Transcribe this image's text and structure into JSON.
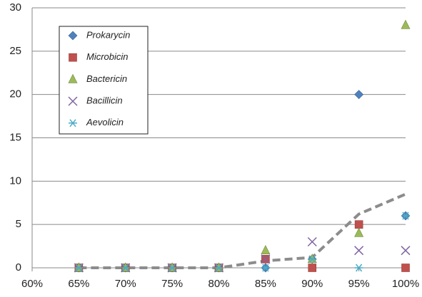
{
  "chart_data": {
    "type": "scatter",
    "x": [
      65,
      70,
      75,
      80,
      85,
      90,
      95,
      100
    ],
    "xlim": [
      60,
      100
    ],
    "xticks": [
      {
        "value": 60,
        "label": "60%"
      },
      {
        "value": 65,
        "label": "65%"
      },
      {
        "value": 70,
        "label": "70%"
      },
      {
        "value": 75,
        "label": "75%"
      },
      {
        "value": 80,
        "label": "80%"
      },
      {
        "value": 85,
        "label": "85%"
      },
      {
        "value": 90,
        "label": "90%"
      },
      {
        "value": 95,
        "label": "95%"
      },
      {
        "value": 100,
        "label": "100%"
      }
    ],
    "ylim": [
      0,
      30
    ],
    "yticks": [
      0,
      5,
      10,
      15,
      20,
      25,
      30
    ],
    "grid": true,
    "legend": "upper-left",
    "series": [
      {
        "name": "Prokarycin",
        "color": "#4f81bd",
        "marker": "diamond",
        "values": [
          0,
          0,
          0,
          0,
          0,
          1,
          20,
          6
        ]
      },
      {
        "name": "Microbicin",
        "color": "#c0504d",
        "marker": "square",
        "values": [
          0,
          0,
          0,
          0,
          1,
          0,
          5,
          0
        ]
      },
      {
        "name": "Bactericin",
        "color": "#9bbb59",
        "marker": "triangle",
        "values": [
          0,
          0,
          0,
          0,
          2,
          1,
          4,
          28
        ]
      },
      {
        "name": "Bacillicin",
        "color": "#8064a2",
        "marker": "cross",
        "values": [
          0,
          0,
          0,
          0,
          1,
          3,
          2,
          2
        ]
      },
      {
        "name": "Aevolicin",
        "color": "#4bacc6",
        "marker": "star",
        "values": [
          0,
          0,
          0,
          0,
          0,
          1,
          0,
          6
        ]
      }
    ],
    "trendline": {
      "color": "#8c8c8c",
      "values": [
        0,
        0,
        0,
        0,
        0.8,
        1.2,
        6.2,
        8.5
      ]
    }
  }
}
